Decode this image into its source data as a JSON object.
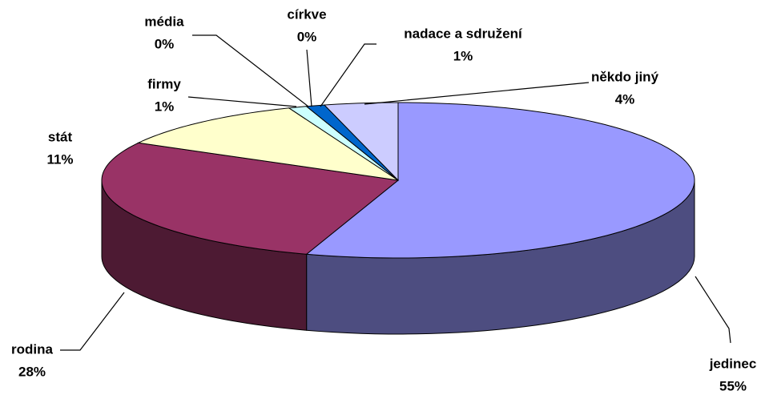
{
  "chart_data": {
    "type": "pie",
    "categories": [
      "jedinec",
      "rodina",
      "stát",
      "firmy",
      "média",
      "církve",
      "nadace a sdružení",
      "někdo jiný"
    ],
    "values": [
      55,
      28,
      11,
      1,
      0,
      0,
      1,
      4
    ],
    "value_labels": [
      "55%",
      "28%",
      "11%",
      "1%",
      "0%",
      "0%",
      "1%",
      "4%"
    ],
    "colors": [
      "#9999ff",
      "#993366",
      "#ffffcc",
      "#ccffff",
      "#660066",
      "#ff8080",
      "#0066cc",
      "#ccccff"
    ]
  }
}
